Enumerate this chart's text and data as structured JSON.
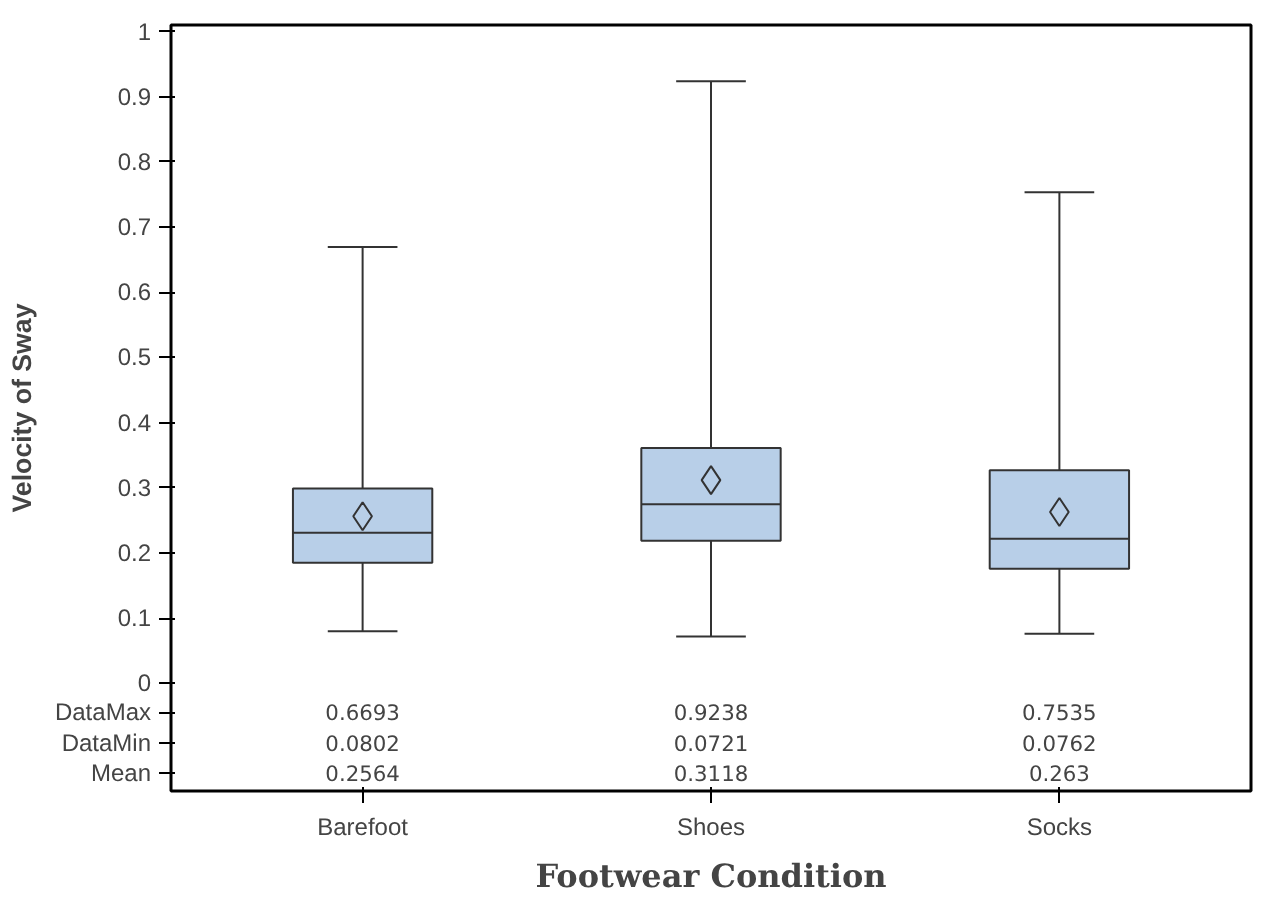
{
  "chart_data": {
    "type": "box",
    "xlabel": "Footwear Condition",
    "ylabel": "Velocity of Sway",
    "categories": [
      "Barefoot",
      "Shoes",
      "Socks"
    ],
    "boxes": [
      {
        "low": 0.0802,
        "q1": 0.185,
        "median": 0.231,
        "q3": 0.299,
        "high": 0.6693,
        "mean": 0.2564
      },
      {
        "low": 0.0721,
        "q1": 0.219,
        "median": 0.275,
        "q3": 0.361,
        "high": 0.9238,
        "mean": 0.3118
      },
      {
        "low": 0.0762,
        "q1": 0.176,
        "median": 0.222,
        "q3": 0.327,
        "high": 0.7535,
        "mean": 0.263
      }
    ],
    "color": "#b8cfe8",
    "marker": "diamond",
    "annotations": [
      "DataMax",
      "DataMin",
      "Mean",
      "0.6693",
      "0.9238",
      "0.7535",
      "0.0802",
      "0.0721",
      "0.0762",
      "0.2564",
      "0.3118",
      "0.263"
    ],
    "ylim": [
      -0.165,
      1.01
    ],
    "yticks": [
      0,
      0.1,
      0.2,
      0.3,
      0.4,
      0.5,
      0.6,
      0.7,
      0.8,
      0.9,
      1
    ],
    "grid": false
  }
}
